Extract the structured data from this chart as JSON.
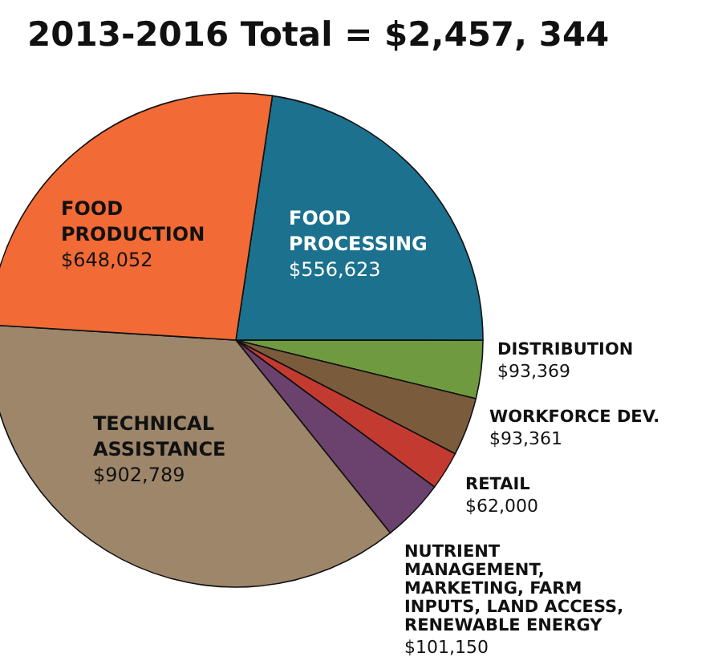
{
  "chart_data": {
    "type": "pie",
    "title": "2013-2016 Total = $2,457, 344",
    "categories": [
      "FOOD PROCESSING",
      "DISTRIBUTION",
      "WORKFORCE DEV.",
      "RETAIL",
      "NUTRIENT MANAGEMENT, MARKETING, FARM INPUTS, LAND ACCESS, RENEWABLE ENERGY",
      "TECHNICAL ASSISTANCE",
      "FOOD PRODUCTION"
    ],
    "values": [
      556623,
      93369,
      93361,
      62000,
      101150,
      902789,
      648052
    ],
    "colors": [
      "#1b718e",
      "#6f9a40",
      "#7a5c3c",
      "#c33b30",
      "#6b426e",
      "#9d866a",
      "#f26a35"
    ],
    "value_labels": [
      "$556,623",
      "$93,369",
      "$93,361",
      "$62,000",
      "$101,150",
      "$902,789",
      "$648,052"
    ]
  }
}
